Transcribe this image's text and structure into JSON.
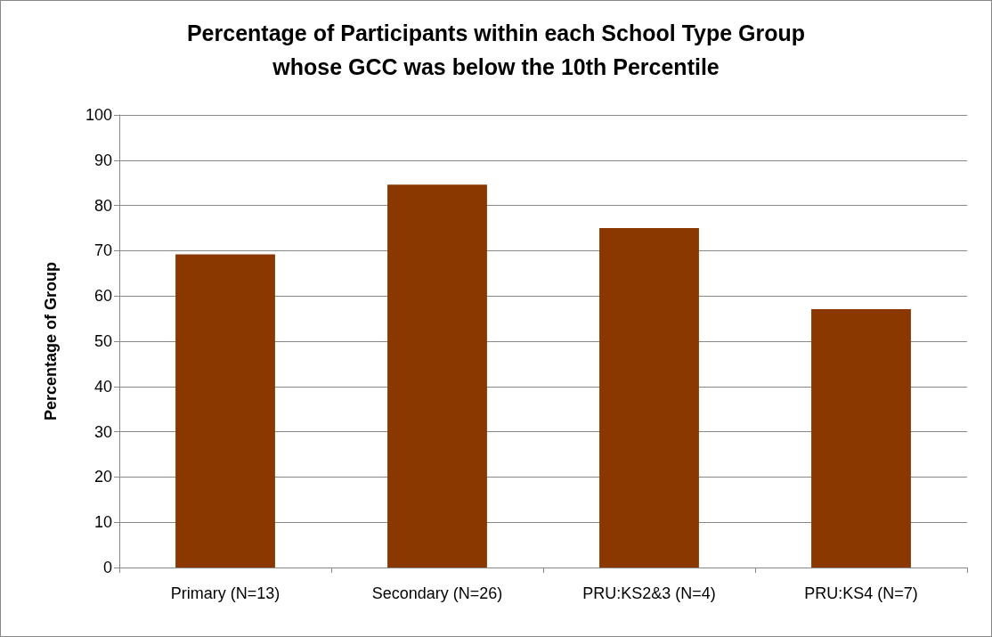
{
  "chart_data": {
    "type": "bar",
    "title": "Percentage of Participants within each School Type Group\nwhose GCC was below the 10th Percentile",
    "ylabel": "Percentage of Group",
    "categories": [
      "Primary (N=13)",
      "Secondary (N=26)",
      "PRU:KS2&3 (N=4)",
      "PRU:KS4 (N=7)"
    ],
    "values": [
      69.2,
      84.6,
      75,
      57.1
    ],
    "color": "#8b3700",
    "ylim": [
      0,
      100
    ],
    "yticks": [
      0,
      10,
      20,
      30,
      40,
      50,
      60,
      70,
      80,
      90,
      100
    ],
    "grid": "y"
  }
}
